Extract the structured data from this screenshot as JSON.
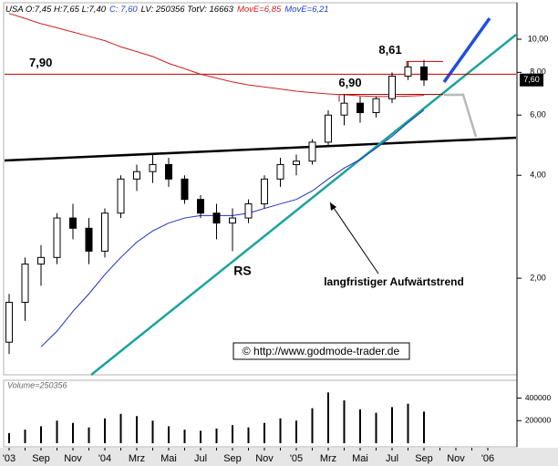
{
  "chart_data": {
    "type": "candlestick",
    "header": [
      {
        "text": "USA O:7,45 H:7,65 L:7,40",
        "color": "#000000"
      },
      {
        "text": "C: 7,60",
        "color": "#1f3fd0"
      },
      {
        "text": "LV: 250356 TotV: 16663",
        "color": "#000000"
      },
      {
        "text": "MovE=6,85",
        "color": "#d02020"
      },
      {
        "text": "MovE=6,21",
        "color": "#1f3fd0"
      }
    ],
    "categories": [
      "'03",
      null,
      "Sep",
      null,
      "Nov",
      null,
      "'04",
      null,
      "Mrz",
      null,
      "Mai",
      null,
      "Jul",
      null,
      "Sep",
      null,
      "Nov",
      null,
      "'05",
      null,
      "Mrz",
      null,
      "Mai",
      null,
      "Jul",
      null,
      "Sep",
      null,
      "Nov",
      null,
      "'06"
    ],
    "open": [
      1.3,
      1.7,
      2.2,
      2.3,
      3.0,
      2.8,
      2.4,
      3.1,
      3.9,
      4.1,
      4.3,
      3.9,
      3.4,
      3.1,
      2.9,
      3.0,
      3.3,
      3.9,
      4.3,
      4.4,
      5.0,
      6.0,
      6.5,
      6.1,
      6.7,
      7.8,
      8.3,
      null,
      null,
      null,
      null
    ],
    "high": [
      1.8,
      2.3,
      2.5,
      3.1,
      3.3,
      3.0,
      3.2,
      4.0,
      4.3,
      4.6,
      4.5,
      4.0,
      3.5,
      3.3,
      3.2,
      3.4,
      4.0,
      4.5,
      4.6,
      5.1,
      6.2,
      6.9,
      6.8,
      6.8,
      8.0,
      8.6,
      8.7,
      null,
      null,
      null,
      null
    ],
    "low": [
      1.2,
      1.5,
      1.9,
      2.2,
      2.6,
      2.2,
      2.3,
      3.0,
      3.6,
      3.8,
      3.7,
      3.3,
      3.0,
      2.6,
      2.4,
      2.9,
      3.2,
      3.7,
      4.0,
      4.3,
      4.9,
      5.6,
      5.7,
      5.9,
      6.5,
      7.6,
      7.3,
      null,
      null,
      null,
      null
    ],
    "close": [
      1.7,
      2.2,
      2.3,
      3.0,
      2.8,
      2.4,
      3.1,
      3.9,
      4.1,
      4.3,
      3.9,
      3.4,
      3.1,
      2.9,
      3.0,
      3.3,
      3.9,
      4.3,
      4.4,
      5.0,
      6.0,
      6.5,
      6.1,
      6.7,
      7.8,
      8.3,
      7.6,
      null,
      null,
      null,
      null
    ],
    "up_color": "#ffffff",
    "down_color": "#000000",
    "series": [
      {
        "name": "MovE=6,85",
        "color": "#d02020",
        "values": [
          11.9,
          11.5,
          11.1,
          10.8,
          10.5,
          10.2,
          9.9,
          9.5,
          9.2,
          8.9,
          8.5,
          8.2,
          7.9,
          7.7,
          7.5,
          7.35,
          7.25,
          7.15,
          7.05,
          6.98,
          6.92,
          6.88,
          6.83,
          6.8,
          6.8,
          6.82,
          6.85,
          null,
          null,
          null,
          null
        ]
      },
      {
        "name": "MovE=6,21",
        "color": "#2030c0",
        "values": [
          null,
          null,
          1.26,
          1.4,
          1.6,
          1.8,
          2.05,
          2.3,
          2.55,
          2.75,
          2.9,
          3.0,
          3.05,
          3.05,
          3.05,
          3.1,
          3.2,
          3.3,
          3.4,
          3.6,
          3.9,
          4.2,
          4.45,
          4.8,
          5.2,
          5.7,
          6.21,
          null,
          null,
          null,
          null
        ]
      }
    ],
    "log_scale": true,
    "ylim": [
      1.05,
      12.4
    ],
    "yticks": [
      {
        "value": 2,
        "label": "2,00"
      },
      {
        "value": 4,
        "label": "4,00"
      },
      {
        "value": 6,
        "label": "6,00"
      },
      {
        "value": 8,
        "label": "8,00"
      },
      {
        "value": 10,
        "label": "10,00"
      }
    ],
    "last_price": {
      "value": 7.6,
      "label": "7,60"
    },
    "levels": [
      {
        "value": 7.9,
        "label": "7,90",
        "color": "#c00000"
      },
      {
        "value": 8.61,
        "label": "8,61",
        "color": "#c00000"
      },
      {
        "value": 6.9,
        "label": "6,90",
        "color": "#c00000"
      }
    ],
    "annotations": [
      "RS",
      "langfristiger Aufwärtstrend"
    ],
    "copyright": "© http://www.godmode-trader.de",
    "volume": {
      "title": "Volume=250356",
      "color": "#000000",
      "values": [
        90000,
        120000,
        150000,
        200000,
        180000,
        140000,
        220000,
        260000,
        240000,
        200000,
        150000,
        120000,
        110000,
        130000,
        160000,
        140000,
        180000,
        220000,
        200000,
        310000,
        450000,
        380000,
        300000,
        270000,
        320000,
        350000,
        280000,
        null,
        null,
        null,
        null
      ],
      "ylim": [
        0,
        550000
      ],
      "yticks": [
        200000,
        400000
      ]
    }
  }
}
